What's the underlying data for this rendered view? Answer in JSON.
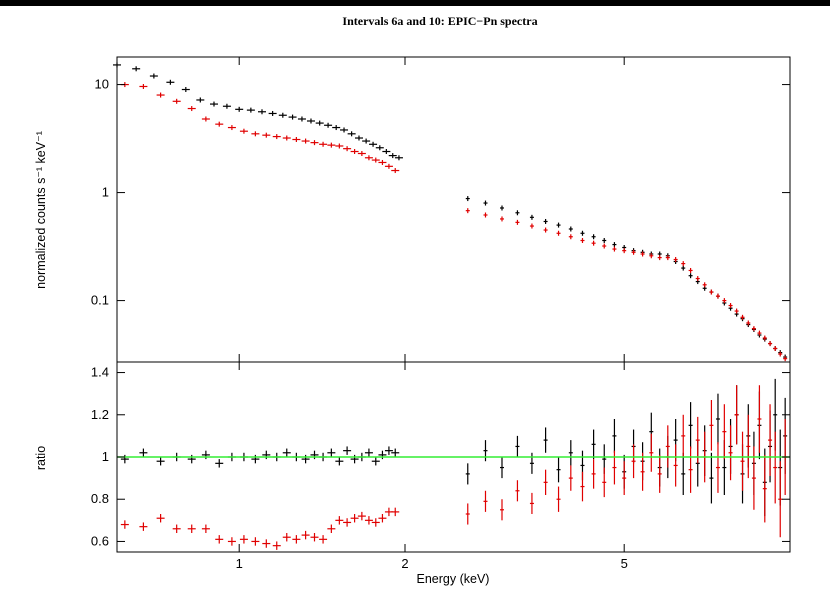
{
  "chart_data": [
    {
      "type": "scatter",
      "panel": "spectrum",
      "title": "Intervals 6a and 10: EPIC−Pn spectra",
      "ylabel": "normalized counts s⁻¹ keV⁻¹",
      "yscale": "log",
      "xscale": "log",
      "xlim": [
        0.6,
        10.0
      ],
      "ylim": [
        0.027,
        18.0
      ],
      "ytick_labels": [
        "10",
        "1",
        "0.1"
      ],
      "ytick_values": [
        10,
        1,
        0.1
      ],
      "series": [
        {
          "color": "#000000",
          "x": [
            0.6,
            0.65,
            0.7,
            0.75,
            0.8,
            0.85,
            0.9,
            0.95,
            1.0,
            1.05,
            1.1,
            1.15,
            1.2,
            1.25,
            1.3,
            1.35,
            1.4,
            1.45,
            1.5,
            1.55,
            1.6,
            1.65,
            1.7,
            1.75,
            1.8,
            1.85,
            1.9,
            1.95,
            2.6,
            2.8,
            3.0,
            3.2,
            3.4,
            3.6,
            3.8,
            4.0,
            4.2,
            4.4,
            4.6,
            4.8,
            5.0,
            5.2,
            5.4,
            5.6,
            5.8,
            6.0,
            6.2,
            6.4,
            6.6,
            6.8,
            7.0,
            7.2,
            7.4,
            7.6,
            7.8,
            8.0,
            8.2,
            8.4,
            8.6,
            8.8,
            9.0,
            9.2,
            9.4,
            9.6,
            9.8
          ],
          "y": [
            15.2,
            14.0,
            12.0,
            10.5,
            9.0,
            7.2,
            6.6,
            6.3,
            5.9,
            5.8,
            5.6,
            5.4,
            5.2,
            5.0,
            4.8,
            4.6,
            4.4,
            4.2,
            4.0,
            3.8,
            3.5,
            3.2,
            3.0,
            2.8,
            2.6,
            2.4,
            2.2,
            2.1,
            0.88,
            0.8,
            0.72,
            0.65,
            0.59,
            0.54,
            0.5,
            0.46,
            0.42,
            0.39,
            0.36,
            0.33,
            0.31,
            0.29,
            0.28,
            0.27,
            0.27,
            0.26,
            0.23,
            0.2,
            0.17,
            0.15,
            0.13,
            0.12,
            0.11,
            0.095,
            0.085,
            0.075,
            0.068,
            0.06,
            0.054,
            0.048,
            0.044,
            0.04,
            0.036,
            0.033,
            0.03
          ]
        },
        {
          "color": "#e00000",
          "x": [
            0.62,
            0.67,
            0.72,
            0.77,
            0.82,
            0.87,
            0.92,
            0.97,
            1.02,
            1.07,
            1.12,
            1.17,
            1.22,
            1.27,
            1.32,
            1.37,
            1.42,
            1.47,
            1.52,
            1.57,
            1.62,
            1.67,
            1.72,
            1.77,
            1.82,
            1.87,
            1.92,
            2.6,
            2.8,
            3.0,
            3.2,
            3.4,
            3.6,
            3.8,
            4.0,
            4.2,
            4.4,
            4.6,
            4.8,
            5.0,
            5.2,
            5.4,
            5.6,
            5.8,
            6.0,
            6.2,
            6.4,
            6.6,
            6.8,
            7.0,
            7.2,
            7.4,
            7.6,
            7.8,
            8.0,
            8.2,
            8.4,
            8.6,
            8.8,
            9.0,
            9.2,
            9.4,
            9.6,
            9.8
          ],
          "y": [
            10.0,
            9.6,
            8.0,
            7.0,
            6.0,
            4.8,
            4.3,
            4.0,
            3.7,
            3.5,
            3.4,
            3.3,
            3.2,
            3.1,
            3.0,
            2.9,
            2.8,
            2.75,
            2.7,
            2.55,
            2.4,
            2.3,
            2.1,
            2.0,
            1.9,
            1.75,
            1.6,
            0.68,
            0.62,
            0.57,
            0.53,
            0.49,
            0.45,
            0.42,
            0.39,
            0.36,
            0.34,
            0.32,
            0.3,
            0.29,
            0.28,
            0.27,
            0.26,
            0.25,
            0.25,
            0.24,
            0.22,
            0.19,
            0.16,
            0.14,
            0.12,
            0.11,
            0.1,
            0.09,
            0.08,
            0.07,
            0.062,
            0.055,
            0.05,
            0.045,
            0.04,
            0.036,
            0.032,
            0.029
          ]
        }
      ]
    },
    {
      "type": "scatter",
      "panel": "ratio",
      "xlabel": "Energy (keV)",
      "ylabel": "ratio",
      "xscale": "log",
      "xlim": [
        0.6,
        10.0
      ],
      "ylim": [
        0.55,
        1.45
      ],
      "ytick_labels": [
        "1.4",
        "1.2",
        "1",
        "0.8",
        "0.6"
      ],
      "ytick_values": [
        1.4,
        1.2,
        1.0,
        0.8,
        0.6
      ],
      "xtick_labels": [
        "1",
        "2",
        "5"
      ],
      "xtick_values": [
        1,
        2,
        5
      ],
      "reference_line": {
        "y": 1.0,
        "color": "#33ee33"
      },
      "series": [
        {
          "color": "#000000",
          "x": [
            0.62,
            0.67,
            0.72,
            0.77,
            0.82,
            0.87,
            0.92,
            0.97,
            1.02,
            1.07,
            1.12,
            1.17,
            1.22,
            1.27,
            1.32,
            1.37,
            1.42,
            1.47,
            1.52,
            1.57,
            1.62,
            1.67,
            1.72,
            1.77,
            1.82,
            1.87,
            1.92,
            2.6,
            2.8,
            3.0,
            3.2,
            3.4,
            3.6,
            3.8,
            4.0,
            4.2,
            4.4,
            4.6,
            4.8,
            5.0,
            5.2,
            5.4,
            5.6,
            5.8,
            6.0,
            6.2,
            6.4,
            6.6,
            6.8,
            7.0,
            7.2,
            7.4,
            7.6,
            7.8,
            8.0,
            8.2,
            8.4,
            8.6,
            8.8,
            9.0,
            9.2,
            9.4,
            9.6,
            9.8
          ],
          "y": [
            0.99,
            1.02,
            0.98,
            1.0,
            0.99,
            1.01,
            0.97,
            1.0,
            1.0,
            0.99,
            1.01,
            1.0,
            1.02,
            1.0,
            0.99,
            1.01,
            1.0,
            1.02,
            0.98,
            1.03,
            0.99,
            1.0,
            1.02,
            0.98,
            1.01,
            1.03,
            1.02,
            0.92,
            1.03,
            0.95,
            1.05,
            0.97,
            1.08,
            0.94,
            1.02,
            0.96,
            1.06,
            0.99,
            1.1,
            0.93,
            1.05,
            0.98,
            1.12,
            0.95,
            1.0,
            1.08,
            0.92,
            1.15,
            0.97,
            1.03,
            0.9,
            1.18,
            0.95,
            1.05,
            1.2,
            0.92,
            1.1,
            0.97,
            1.15,
            0.88,
            1.05,
            1.2,
            0.95,
            1.1
          ],
          "yerr": [
            0.02,
            0.02,
            0.02,
            0.02,
            0.02,
            0.02,
            0.02,
            0.02,
            0.02,
            0.02,
            0.02,
            0.02,
            0.02,
            0.02,
            0.02,
            0.02,
            0.02,
            0.02,
            0.02,
            0.02,
            0.02,
            0.02,
            0.02,
            0.02,
            0.02,
            0.02,
            0.02,
            0.05,
            0.05,
            0.05,
            0.05,
            0.05,
            0.06,
            0.06,
            0.06,
            0.07,
            0.07,
            0.07,
            0.08,
            0.08,
            0.08,
            0.09,
            0.09,
            0.09,
            0.1,
            0.1,
            0.1,
            0.11,
            0.11,
            0.12,
            0.12,
            0.12,
            0.13,
            0.13,
            0.14,
            0.14,
            0.15,
            0.15,
            0.16,
            0.16,
            0.17,
            0.17,
            0.18,
            0.18
          ]
        },
        {
          "color": "#e00000",
          "x": [
            0.62,
            0.67,
            0.72,
            0.77,
            0.82,
            0.87,
            0.92,
            0.97,
            1.02,
            1.07,
            1.12,
            1.17,
            1.22,
            1.27,
            1.32,
            1.37,
            1.42,
            1.47,
            1.52,
            1.57,
            1.62,
            1.67,
            1.72,
            1.77,
            1.82,
            1.87,
            1.92,
            2.6,
            2.8,
            3.0,
            3.2,
            3.4,
            3.6,
            3.8,
            4.0,
            4.2,
            4.4,
            4.6,
            4.8,
            5.0,
            5.2,
            5.4,
            5.6,
            5.8,
            6.0,
            6.2,
            6.4,
            6.6,
            6.8,
            7.0,
            7.2,
            7.4,
            7.6,
            7.8,
            8.0,
            8.2,
            8.4,
            8.6,
            8.8,
            9.0,
            9.2,
            9.4,
            9.6,
            9.8
          ],
          "y": [
            0.68,
            0.67,
            0.71,
            0.66,
            0.66,
            0.66,
            0.61,
            0.6,
            0.61,
            0.6,
            0.59,
            0.58,
            0.62,
            0.61,
            0.63,
            0.62,
            0.61,
            0.66,
            0.7,
            0.69,
            0.71,
            0.72,
            0.7,
            0.69,
            0.71,
            0.74,
            0.74,
            0.73,
            0.79,
            0.75,
            0.84,
            0.78,
            0.88,
            0.8,
            0.9,
            0.86,
            0.92,
            0.88,
            0.95,
            0.9,
            0.98,
            0.93,
            1.02,
            0.92,
            1.05,
            0.96,
            1.1,
            0.94,
            1.08,
            1.0,
            1.15,
            0.95,
            1.12,
            1.02,
            1.2,
            0.98,
            1.05,
            0.9,
            1.18,
            0.85,
            1.08,
            0.95,
            0.8,
            1.0
          ],
          "yerr": [
            0.02,
            0.02,
            0.02,
            0.02,
            0.02,
            0.02,
            0.02,
            0.02,
            0.02,
            0.02,
            0.02,
            0.02,
            0.02,
            0.02,
            0.02,
            0.02,
            0.02,
            0.02,
            0.02,
            0.02,
            0.02,
            0.02,
            0.02,
            0.02,
            0.02,
            0.02,
            0.02,
            0.05,
            0.05,
            0.05,
            0.05,
            0.05,
            0.06,
            0.06,
            0.06,
            0.07,
            0.07,
            0.07,
            0.08,
            0.08,
            0.08,
            0.09,
            0.09,
            0.09,
            0.1,
            0.1,
            0.1,
            0.11,
            0.11,
            0.12,
            0.12,
            0.12,
            0.13,
            0.13,
            0.14,
            0.14,
            0.15,
            0.15,
            0.16,
            0.16,
            0.17,
            0.17,
            0.18,
            0.18
          ]
        }
      ]
    }
  ]
}
